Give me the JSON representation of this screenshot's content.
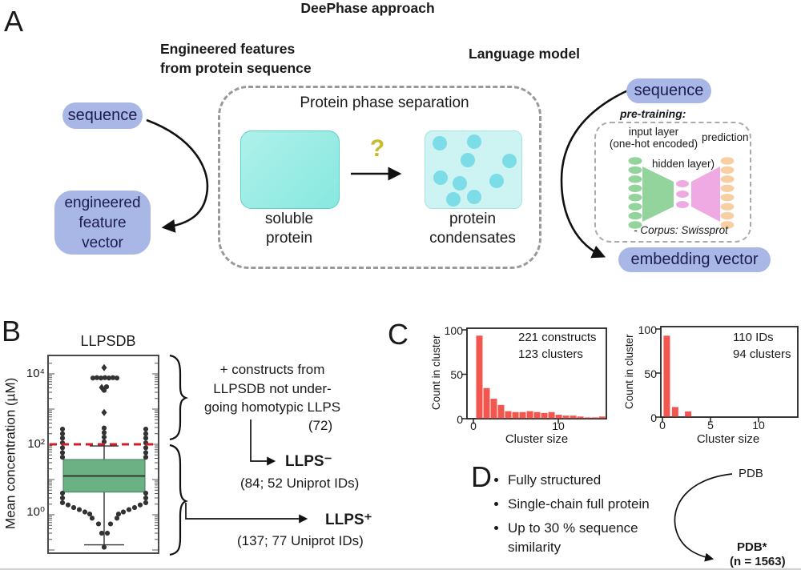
{
  "figure": {
    "title": "DeePhase approach"
  },
  "panels": {
    "a": "A",
    "b": "B",
    "c": "C",
    "d": "D"
  },
  "panel_a": {
    "left_heading": "Engineered features\nfrom protein sequence",
    "right_heading": "Language model",
    "sequence_left": "sequence",
    "engineered_vector": "engineered\nfeature\nvector",
    "phase_title": "Protein phase separation",
    "soluble_label": "soluble\nprotein",
    "question_mark": "?",
    "condensates_label": "protein\ncondensates",
    "sequence_right": "sequence",
    "pretraining_label": "pre-training:",
    "input_layer_label": "input layer\n(one-hot encoded)",
    "prediction_label": "prediction",
    "hidden_layer_label": "hidden layer)",
    "corpus_label": "- Corpus: Swissprot",
    "embedding_vector": "embedding vector"
  },
  "panel_b": {
    "note": "+ constructs from\nLLPSDB not under-\ngoing homotypic LLPS",
    "note_count": "(72)",
    "llps_minus": "LLPS⁻",
    "llps_minus_detail": "(84; 52 Uniprot IDs)",
    "llps_plus": "LLPS⁺",
    "llps_plus_detail": "(137; 77 Uniprot IDs)"
  },
  "panel_d": {
    "bullets": [
      "Fully structured",
      "Single-chain full protein",
      "Up to 30 % sequence\nsimilarity"
    ],
    "pdb_label": "PDB",
    "pdb_star_label": "PDB*",
    "pdb_star_count": "(n = 1563)"
  },
  "colors": {
    "pill": "#a9b7e6",
    "pill_text": "#1c1c50",
    "cyan": "#87e8e0",
    "cyan_light": "#cdf3f3",
    "condensate": "#7cdde8",
    "nn_green": "#93d39c",
    "nn_pink": "#efa9e3",
    "nn_orange": "#f6cfa2",
    "question": "#c9b92d",
    "bar": "#f2574f",
    "box_green": "#6cb183",
    "red_line": "#cc2127",
    "ink": "#1a1a1a"
  },
  "chart_data": [
    {
      "type": "boxplot",
      "title": "LLPSDB",
      "ylabel": "Mean concentration (µM)",
      "yscale": "log",
      "yticks": [
        "10⁴",
        "10²",
        "10⁰"
      ],
      "units": "µM",
      "box": {
        "median": 12.6,
        "q1": 4.4,
        "q3": 37,
        "whisker_low": 0.14,
        "whisker_high": 90
      },
      "threshold_uM": 100,
      "points": [
        {
          "dx": 0,
          "v": 15000,
          "m": "d"
        },
        {
          "dx": -14,
          "v": 7600
        },
        {
          "dx": -9,
          "v": 7800
        },
        {
          "dx": -4,
          "v": 7600
        },
        {
          "dx": 1,
          "v": 7800
        },
        {
          "dx": 6,
          "v": 7600
        },
        {
          "dx": 11,
          "v": 7800
        },
        {
          "dx": 16,
          "v": 7600
        },
        {
          "dx": -3,
          "v": 4100,
          "m": "d"
        },
        {
          "dx": 3,
          "v": 4300
        },
        {
          "dx": 0,
          "v": 3400
        },
        {
          "dx": 0,
          "v": 800,
          "m": "d"
        },
        {
          "dx": 0,
          "v": 290
        },
        {
          "dx": 0,
          "v": 215
        },
        {
          "dx": 0,
          "v": 160
        },
        {
          "dx": 0,
          "v": 118
        },
        {
          "dx": -52,
          "v": 270
        },
        {
          "dx": -52,
          "v": 200
        },
        {
          "dx": -52,
          "v": 150
        },
        {
          "dx": -52,
          "v": 110
        },
        {
          "dx": -52,
          "v": 80
        },
        {
          "dx": -52,
          "v": 58
        },
        {
          "dx": -52,
          "v": 43
        },
        {
          "dx": 52,
          "v": 270
        },
        {
          "dx": 52,
          "v": 200
        },
        {
          "dx": 52,
          "v": 150
        },
        {
          "dx": 52,
          "v": 110
        },
        {
          "dx": 52,
          "v": 80
        },
        {
          "dx": 52,
          "v": 58
        },
        {
          "dx": 52,
          "v": 43
        },
        {
          "dx": -52,
          "v": 4.1
        },
        {
          "dx": -52,
          "v": 3.0
        },
        {
          "dx": -52,
          "v": 2.2
        },
        {
          "dx": 52,
          "v": 4.1
        },
        {
          "dx": 52,
          "v": 3.0
        },
        {
          "dx": 52,
          "v": 2.2
        },
        {
          "dx": -45,
          "v": 1.9
        },
        {
          "dx": -38,
          "v": 1.6
        },
        {
          "dx": -31,
          "v": 1.4
        },
        {
          "dx": -24,
          "v": 1.2
        },
        {
          "dx": -18,
          "v": 1.05
        },
        {
          "dx": 45,
          "v": 1.9
        },
        {
          "dx": 38,
          "v": 1.6
        },
        {
          "dx": 31,
          "v": 1.4
        },
        {
          "dx": 24,
          "v": 1.2
        },
        {
          "dx": 18,
          "v": 1.05
        },
        {
          "dx": -15,
          "v": 0.8
        },
        {
          "dx": 16,
          "v": 0.8
        },
        {
          "dx": -7,
          "v": 0.55
        },
        {
          "dx": 8,
          "v": 0.55
        },
        {
          "dx": -3,
          "v": 0.3
        },
        {
          "dx": 4,
          "v": 0.3
        },
        {
          "dx": 0,
          "v": 0.12
        }
      ]
    },
    {
      "type": "bar",
      "annotation": "221 constructs\n123 clusters",
      "xlabel": "Cluster size",
      "ylabel": "Count in cluster",
      "xticks": [
        0,
        10
      ],
      "yticks": [
        0,
        50,
        100
      ],
      "ylim": [
        0,
        100
      ],
      "bin_width": 0.85,
      "bars": [
        {
          "x": 0.28,
          "h": 93
        },
        {
          "x": 1.13,
          "h": 34
        },
        {
          "x": 1.98,
          "h": 22
        },
        {
          "x": 2.83,
          "h": 15
        },
        {
          "x": 3.68,
          "h": 8
        },
        {
          "x": 4.53,
          "h": 7
        },
        {
          "x": 5.38,
          "h": 7
        },
        {
          "x": 6.23,
          "h": 8
        },
        {
          "x": 7.08,
          "h": 7
        },
        {
          "x": 7.93,
          "h": 6
        },
        {
          "x": 8.78,
          "h": 7
        },
        {
          "x": 9.63,
          "h": 4
        },
        {
          "x": 10.48,
          "h": 3
        },
        {
          "x": 11.33,
          "h": 3
        },
        {
          "x": 12.18,
          "h": 2
        },
        {
          "x": 13.03,
          "h": 1
        },
        {
          "x": 13.88,
          "h": 1
        },
        {
          "x": 14.73,
          "h": 2
        }
      ]
    },
    {
      "type": "bar",
      "annotation": "110 IDs\n94 clusters",
      "xlabel": "Cluster size",
      "ylabel": "Count in cluster",
      "xticks": [
        0,
        5,
        10
      ],
      "yticks": [
        0,
        50,
        100
      ],
      "ylim": [
        0,
        100
      ],
      "bin_width": 0.75,
      "bars": [
        {
          "x": 0.08,
          "h": 92
        },
        {
          "x": 0.95,
          "h": 11
        },
        {
          "x": 2.3,
          "h": 6
        }
      ]
    }
  ]
}
